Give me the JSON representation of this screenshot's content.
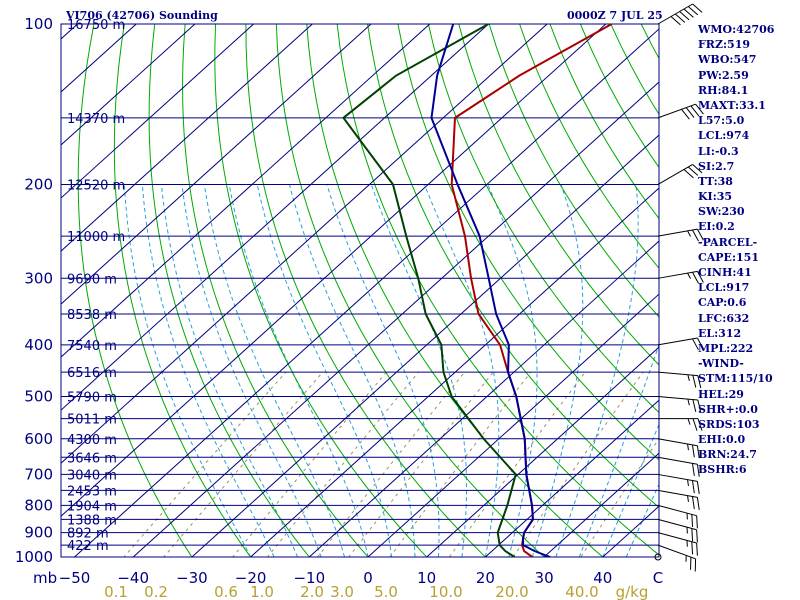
{
  "header": {
    "station": "VI706 (42706) Sounding",
    "datetime": "0000Z  7 JUL 25"
  },
  "chart_data": {
    "type": "line",
    "title": "VI706 (42706) Sounding",
    "subtitle": "0000Z  7 JUL 25",
    "y_scale": "log",
    "y_units": "mb",
    "x_units": "C",
    "mixing_ratio_units": "g/kg",
    "ylim": [
      1000,
      100
    ],
    "xlim": [
      -50,
      50
    ],
    "pressure_ticks": [
      "100",
      "200",
      "300",
      "400",
      "500",
      "600",
      "700",
      "800",
      "900",
      "1000"
    ],
    "temperature_ticks": [
      "−50",
      "−40",
      "−30",
      "−20",
      "−10",
      "0",
      "10",
      "20",
      "30",
      "40"
    ],
    "mixing_ratio_ticks": [
      "0.1",
      "0.2",
      "0.6",
      "1.0",
      "2.0",
      "3.0",
      "5.0",
      "10.0",
      "20.0",
      "40.0"
    ],
    "height_labels": [
      {
        "p": 100,
        "text": "16750 m"
      },
      {
        "p": 150,
        "text": "14370 m"
      },
      {
        "p": 200,
        "text": "12520 m"
      },
      {
        "p": 250,
        "text": "11000 m"
      },
      {
        "p": 300,
        "text": "9690 m"
      },
      {
        "p": 350,
        "text": "8538 m"
      },
      {
        "p": 400,
        "text": "7540 m"
      },
      {
        "p": 450,
        "text": "6516 m"
      },
      {
        "p": 500,
        "text": "5790 m"
      },
      {
        "p": 550,
        "text": "5011 m"
      },
      {
        "p": 600,
        "text": "4300 m"
      },
      {
        "p": 650,
        "text": "3646 m"
      },
      {
        "p": 700,
        "text": "3040 m"
      },
      {
        "p": 750,
        "text": "2453 m"
      },
      {
        "p": 800,
        "text": "1904 m"
      },
      {
        "p": 850,
        "text": "1388 m"
      },
      {
        "p": 900,
        "text": "892 m"
      },
      {
        "p": 950,
        "text": "422 m"
      }
    ],
    "series": [
      {
        "name": "Temperature",
        "color": "#aa0000",
        "points": [
          [
            1000,
            28
          ],
          [
            975,
            25.5
          ],
          [
            950,
            24
          ],
          [
            925,
            23
          ],
          [
            900,
            22
          ],
          [
            850,
            21
          ],
          [
            800,
            18.2
          ],
          [
            700,
            11.4
          ],
          [
            600,
            4.4
          ],
          [
            500,
            -5
          ],
          [
            450,
            -11
          ],
          [
            400,
            -17.5
          ],
          [
            350,
            -27
          ],
          [
            300,
            -35
          ],
          [
            250,
            -44
          ],
          [
            200,
            -56
          ],
          [
            150,
            -68
          ],
          [
            125,
            -65
          ],
          [
            100,
            -59
          ]
        ]
      },
      {
        "name": "Dew Point",
        "color": "#004000",
        "points": [
          [
            1000,
            25
          ],
          [
            975,
            22.3
          ],
          [
            950,
            20.2
          ],
          [
            900,
            17.5
          ],
          [
            850,
            15.8
          ],
          [
            800,
            14
          ],
          [
            700,
            9.6
          ],
          [
            600,
            -2.6
          ],
          [
            500,
            -16
          ],
          [
            450,
            -22
          ],
          [
            400,
            -27.5
          ],
          [
            350,
            -36
          ],
          [
            300,
            -44
          ],
          [
            250,
            -54
          ],
          [
            200,
            -66
          ],
          [
            150,
            -87
          ],
          [
            125,
            -86
          ],
          [
            100,
            -80
          ]
        ]
      },
      {
        "name": "Parcel",
        "color": "#000099",
        "points": [
          [
            1000,
            31
          ],
          [
            975,
            27.3
          ],
          [
            950,
            24.2
          ],
          [
            925,
            23
          ],
          [
            900,
            22
          ],
          [
            850,
            21
          ],
          [
            800,
            18.2
          ],
          [
            700,
            11.4
          ],
          [
            600,
            4.4
          ],
          [
            500,
            -5
          ],
          [
            450,
            -11
          ],
          [
            400,
            -16
          ],
          [
            350,
            -24
          ],
          [
            300,
            -32
          ],
          [
            250,
            -41.5
          ],
          [
            200,
            -55
          ],
          [
            150,
            -72
          ],
          [
            125,
            -79
          ],
          [
            100,
            -86
          ]
        ]
      }
    ],
    "wind_barbs": [
      {
        "p": 100,
        "dir": 60,
        "kt": 60
      },
      {
        "p": 150,
        "dir": 70,
        "kt": 40
      },
      {
        "p": 200,
        "dir": 60,
        "kt": 30
      },
      {
        "p": 250,
        "dir": 80,
        "kt": 25
      },
      {
        "p": 300,
        "dir": 80,
        "kt": 25
      },
      {
        "p": 400,
        "dir": 80,
        "kt": 20
      },
      {
        "p": 450,
        "dir": 95,
        "kt": 25
      },
      {
        "p": 500,
        "dir": 95,
        "kt": 25
      },
      {
        "p": 550,
        "dir": 90,
        "kt": 25
      },
      {
        "p": 600,
        "dir": 100,
        "kt": 25
      },
      {
        "p": 650,
        "dir": 100,
        "kt": 20
      },
      {
        "p": 700,
        "dir": 100,
        "kt": 25
      },
      {
        "p": 750,
        "dir": 100,
        "kt": 25
      },
      {
        "p": 800,
        "dir": 105,
        "kt": 25
      },
      {
        "p": 850,
        "dir": 105,
        "kt": 25
      },
      {
        "p": 900,
        "dir": 105,
        "kt": 25
      },
      {
        "p": 950,
        "dir": 110,
        "kt": 25
      },
      {
        "p": 1000,
        "dir": 0,
        "kt": 0
      }
    ],
    "grid": true
  },
  "indices": [
    "WMO:42706",
    "FRZ:519",
    "WBO:547",
    "PW:2.59",
    "RH:84.1",
    "MAXT:33.1",
    "L57:5.0",
    "LCL:974",
    "LI:-0.3",
    "SI:2.7",
    "TT:38",
    "KI:35",
    "SW:230",
    "EI:0.2",
    "-PARCEL-",
    "CAPE:151",
    "CINH:41",
    "LCL:917",
    "CAP:0.6",
    "LFC:632",
    "EL:312",
    "MPL:222",
    "-WIND-",
    "STM:115/10",
    "HEL:29",
    "SHR+:0.0",
    "SRDS:103",
    "EHI:0.0",
    "BRN:24.7",
    "BSHR:6"
  ],
  "colors": {
    "isobar": "#000080",
    "isotherm": "#000080",
    "dry_adiabat": "#00aa00",
    "moist_adiabat": "#2aa0d8",
    "mixing_ratio": "#a09060",
    "axis_text": "#000080",
    "mixing_text": "#b8a030"
  }
}
